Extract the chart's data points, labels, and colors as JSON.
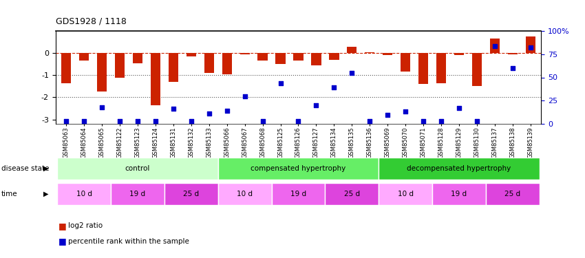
{
  "title": "GDS1928 / 1118",
  "samples": [
    "GSM85063",
    "GSM85064",
    "GSM85065",
    "GSM85122",
    "GSM85123",
    "GSM85124",
    "GSM85131",
    "GSM85132",
    "GSM85133",
    "GSM85066",
    "GSM85067",
    "GSM85068",
    "GSM85125",
    "GSM85126",
    "GSM85127",
    "GSM85134",
    "GSM85135",
    "GSM85136",
    "GSM85069",
    "GSM85070",
    "GSM85071",
    "GSM85128",
    "GSM85129",
    "GSM85130",
    "GSM85137",
    "GSM85138",
    "GSM85139"
  ],
  "log2_ratio": [
    -1.35,
    -0.35,
    -1.75,
    -1.1,
    -0.45,
    -2.35,
    -1.3,
    -0.15,
    -0.9,
    -0.95,
    -0.05,
    -0.35,
    -0.5,
    -0.35,
    -0.55,
    -0.3,
    0.28,
    0.05,
    -0.08,
    -0.85,
    -1.4,
    -1.35,
    -0.08,
    -1.5,
    0.65,
    -0.07,
    0.75
  ],
  "percentile": [
    3,
    3,
    18,
    3,
    3,
    3,
    16,
    3,
    11,
    14,
    30,
    3,
    44,
    3,
    20,
    39,
    55,
    3,
    10,
    13,
    3,
    3,
    17,
    3,
    84,
    60,
    82
  ],
  "bar_color": "#cc2200",
  "dot_color": "#0000cc",
  "dashed_line_color": "#cc2200",
  "dotted_line_color": "#555555",
  "ylim_left": [
    -3.2,
    1.0
  ],
  "ylim_right": [
    0,
    100
  ],
  "yticks_left": [
    -3,
    -2,
    -1,
    0
  ],
  "ytick_labels_left": [
    "-3",
    "-2",
    "-1",
    "0"
  ],
  "yticks_right": [
    0,
    25,
    50,
    75,
    100
  ],
  "ytick_labels_right": [
    "0",
    "25",
    "50",
    "75",
    "100%"
  ],
  "disease_groups": [
    {
      "label": "control",
      "start": 0,
      "end": 9,
      "color": "#ccffcc"
    },
    {
      "label": "compensated hypertrophy",
      "start": 9,
      "end": 18,
      "color": "#66ee66"
    },
    {
      "label": "decompensated hypertrophy",
      "start": 18,
      "end": 27,
      "color": "#33cc33"
    }
  ],
  "time_groups": [
    {
      "label": "10 d",
      "start": 0,
      "end": 3,
      "color": "#ffaaff"
    },
    {
      "label": "19 d",
      "start": 3,
      "end": 6,
      "color": "#ee66ee"
    },
    {
      "label": "25 d",
      "start": 6,
      "end": 9,
      "color": "#dd44dd"
    },
    {
      "label": "10 d",
      "start": 9,
      "end": 12,
      "color": "#ffaaff"
    },
    {
      "label": "19 d",
      "start": 12,
      "end": 15,
      "color": "#ee66ee"
    },
    {
      "label": "25 d",
      "start": 15,
      "end": 18,
      "color": "#dd44dd"
    },
    {
      "label": "10 d",
      "start": 18,
      "end": 21,
      "color": "#ffaaff"
    },
    {
      "label": "19 d",
      "start": 21,
      "end": 24,
      "color": "#ee66ee"
    },
    {
      "label": "25 d",
      "start": 24,
      "end": 27,
      "color": "#dd44dd"
    }
  ],
  "legend_items": [
    {
      "label": "log2 ratio",
      "color": "#cc2200"
    },
    {
      "label": "percentile rank within the sample",
      "color": "#0000cc"
    }
  ]
}
